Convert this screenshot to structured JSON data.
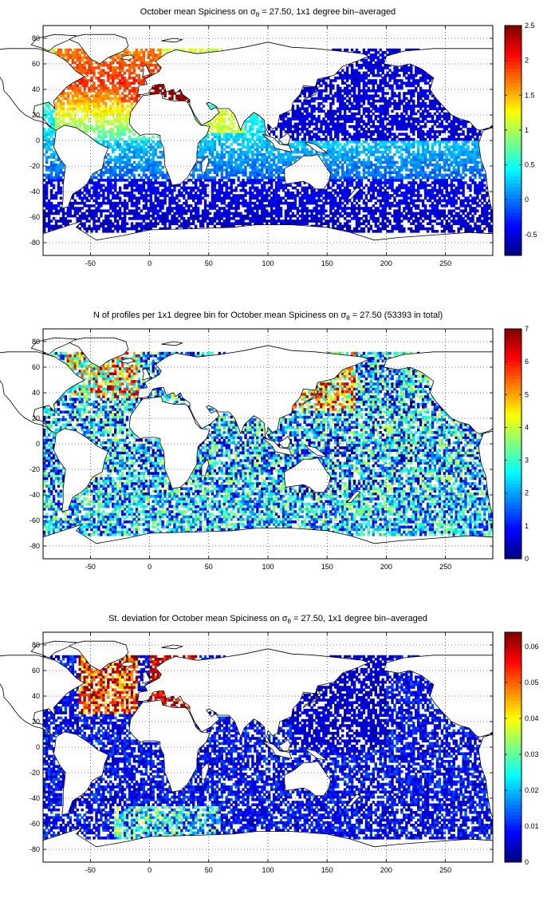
{
  "panels": [
    {
      "title_pre": "October mean Spiciness on ",
      "title_post": " = 27.50, 1x1 degree bin–averaged",
      "sigma_symbol": "σ",
      "sigma_sub": "θ",
      "colorbar_ticks": [
        "2.5",
        "2",
        "1.5",
        "1",
        "0.5",
        "0",
        "-0.5"
      ],
      "colorbar_values": [
        2.5,
        2,
        1.5,
        1,
        0.5,
        0,
        -0.5
      ],
      "colorbar_range": [
        -0.8,
        2.5
      ],
      "field": "spiciness"
    },
    {
      "title_pre": "N of profiles per 1x1 degree bin for October mean Spiciness on ",
      "title_post": " = 27.50 (53393 in total)",
      "sigma_symbol": "σ",
      "sigma_sub": "θ",
      "colorbar_ticks": [
        "7",
        "6",
        "5",
        "4",
        "3",
        "2",
        "1",
        "0"
      ],
      "colorbar_values": [
        7,
        6,
        5,
        4,
        3,
        2,
        1,
        0
      ],
      "colorbar_range": [
        0,
        7
      ],
      "field": "count"
    },
    {
      "title_pre": "St. deviation for October mean Spiciness on ",
      "title_post": " = 27.50, 1x1 degree bin–averaged",
      "sigma_symbol": "σ",
      "sigma_sub": "θ",
      "colorbar_ticks": [
        "0.06",
        "0.05",
        "0.04",
        "0.03",
        "0.02",
        "0.01",
        "0"
      ],
      "colorbar_values": [
        0.06,
        0.05,
        0.04,
        0.03,
        0.02,
        0.01,
        0
      ],
      "colorbar_range": [
        0,
        0.064
      ],
      "field": "stdev"
    }
  ],
  "axes": {
    "x_ticks": [
      "-50",
      "0",
      "50",
      "100",
      "150",
      "200",
      "250"
    ],
    "x_values": [
      -50,
      0,
      50,
      100,
      150,
      200,
      250
    ],
    "x_range": [
      -90,
      290
    ],
    "y_ticks": [
      "80",
      "60",
      "40",
      "20",
      "0",
      "-20",
      "-40",
      "-60",
      "-80"
    ],
    "y_values": [
      80,
      60,
      40,
      20,
      0,
      -20,
      -40,
      -60,
      -80
    ],
    "y_range": [
      -90,
      90
    ],
    "grid": "dotted"
  },
  "colormap": "jet"
}
